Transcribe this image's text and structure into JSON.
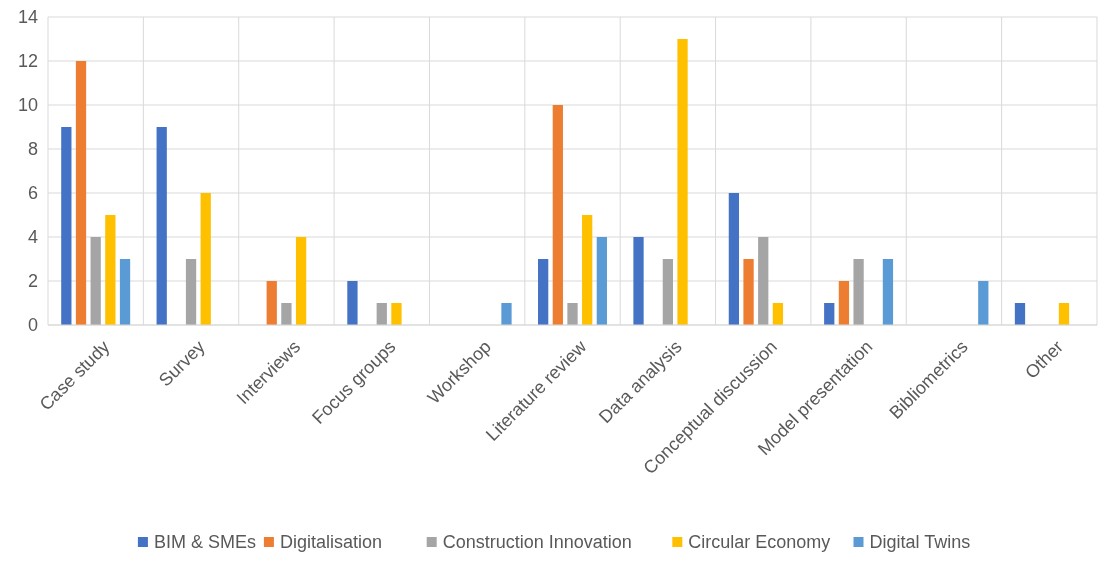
{
  "chart_data": {
    "type": "bar",
    "categories": [
      "Case study",
      "Survey",
      "Interviews",
      "Focus groups",
      "Workshop",
      "Literature review",
      "Data analysis",
      "Conceptual discussion",
      "Model presentation",
      "Bibliometrics",
      "Other"
    ],
    "series": [
      {
        "name": "BIM & SMEs",
        "color": "#4472c4",
        "values": [
          9,
          9,
          0,
          2,
          0,
          3,
          4,
          6,
          1,
          0,
          1
        ]
      },
      {
        "name": "Digitalisation",
        "color": "#ed7d31",
        "values": [
          12,
          0,
          2,
          0,
          0,
          10,
          0,
          3,
          2,
          0,
          0
        ]
      },
      {
        "name": "Construction Innovation",
        "color": "#a5a5a5",
        "values": [
          4,
          3,
          1,
          1,
          0,
          1,
          3,
          4,
          3,
          0,
          0
        ]
      },
      {
        "name": "Circular Economy",
        "color": "#ffc000",
        "values": [
          5,
          6,
          4,
          1,
          0,
          5,
          13,
          1,
          0,
          0,
          1
        ]
      },
      {
        "name": "Digital Twins",
        "color": "#5b9bd5",
        "values": [
          3,
          0,
          0,
          0,
          1,
          4,
          0,
          0,
          3,
          2,
          0
        ]
      }
    ],
    "ylim": [
      0,
      14
    ],
    "yticks": [
      0,
      2,
      4,
      6,
      8,
      10,
      12,
      14
    ],
    "grid": true,
    "legend": "bottom"
  }
}
